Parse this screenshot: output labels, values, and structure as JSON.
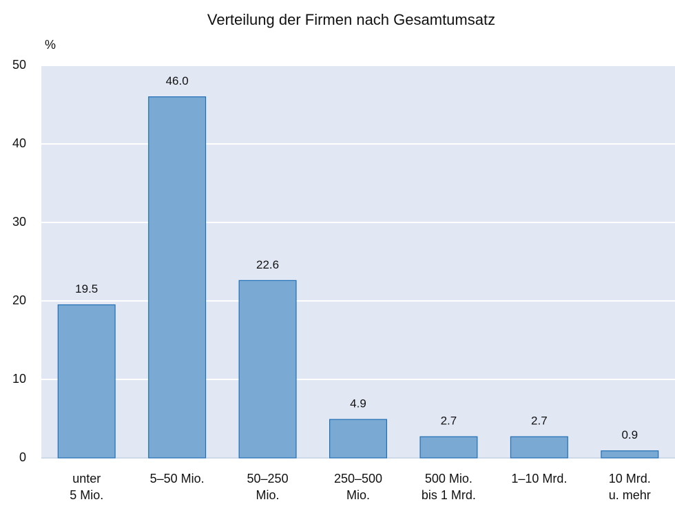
{
  "chart_data": {
    "type": "bar",
    "title": "Verteilung der Firmen nach Gesamtumsatz",
    "y_label": "%",
    "categories": [
      "unter\n5 Mio.",
      "5–50 Mio.",
      "50–250\nMio.",
      "250–500\nMio.",
      "500 Mio.\nbis 1 Mrd.",
      "1–10 Mrd.",
      "10 Mrd.\nu. mehr"
    ],
    "values": [
      19.5,
      46,
      22.6,
      4.9,
      2.7,
      2.7,
      0.9
    ],
    "value_labels": [
      "19.5",
      "46.0",
      "22.6",
      "4.9",
      "2.7",
      "2.7",
      "0.9"
    ],
    "color": "#7aaad4",
    "edge_color": "#1f6eb5",
    "background": "#e1e7f3",
    "ylim": [
      0,
      50
    ],
    "yticks": [
      0,
      10,
      20,
      30,
      40,
      50
    ],
    "grid": true
  }
}
